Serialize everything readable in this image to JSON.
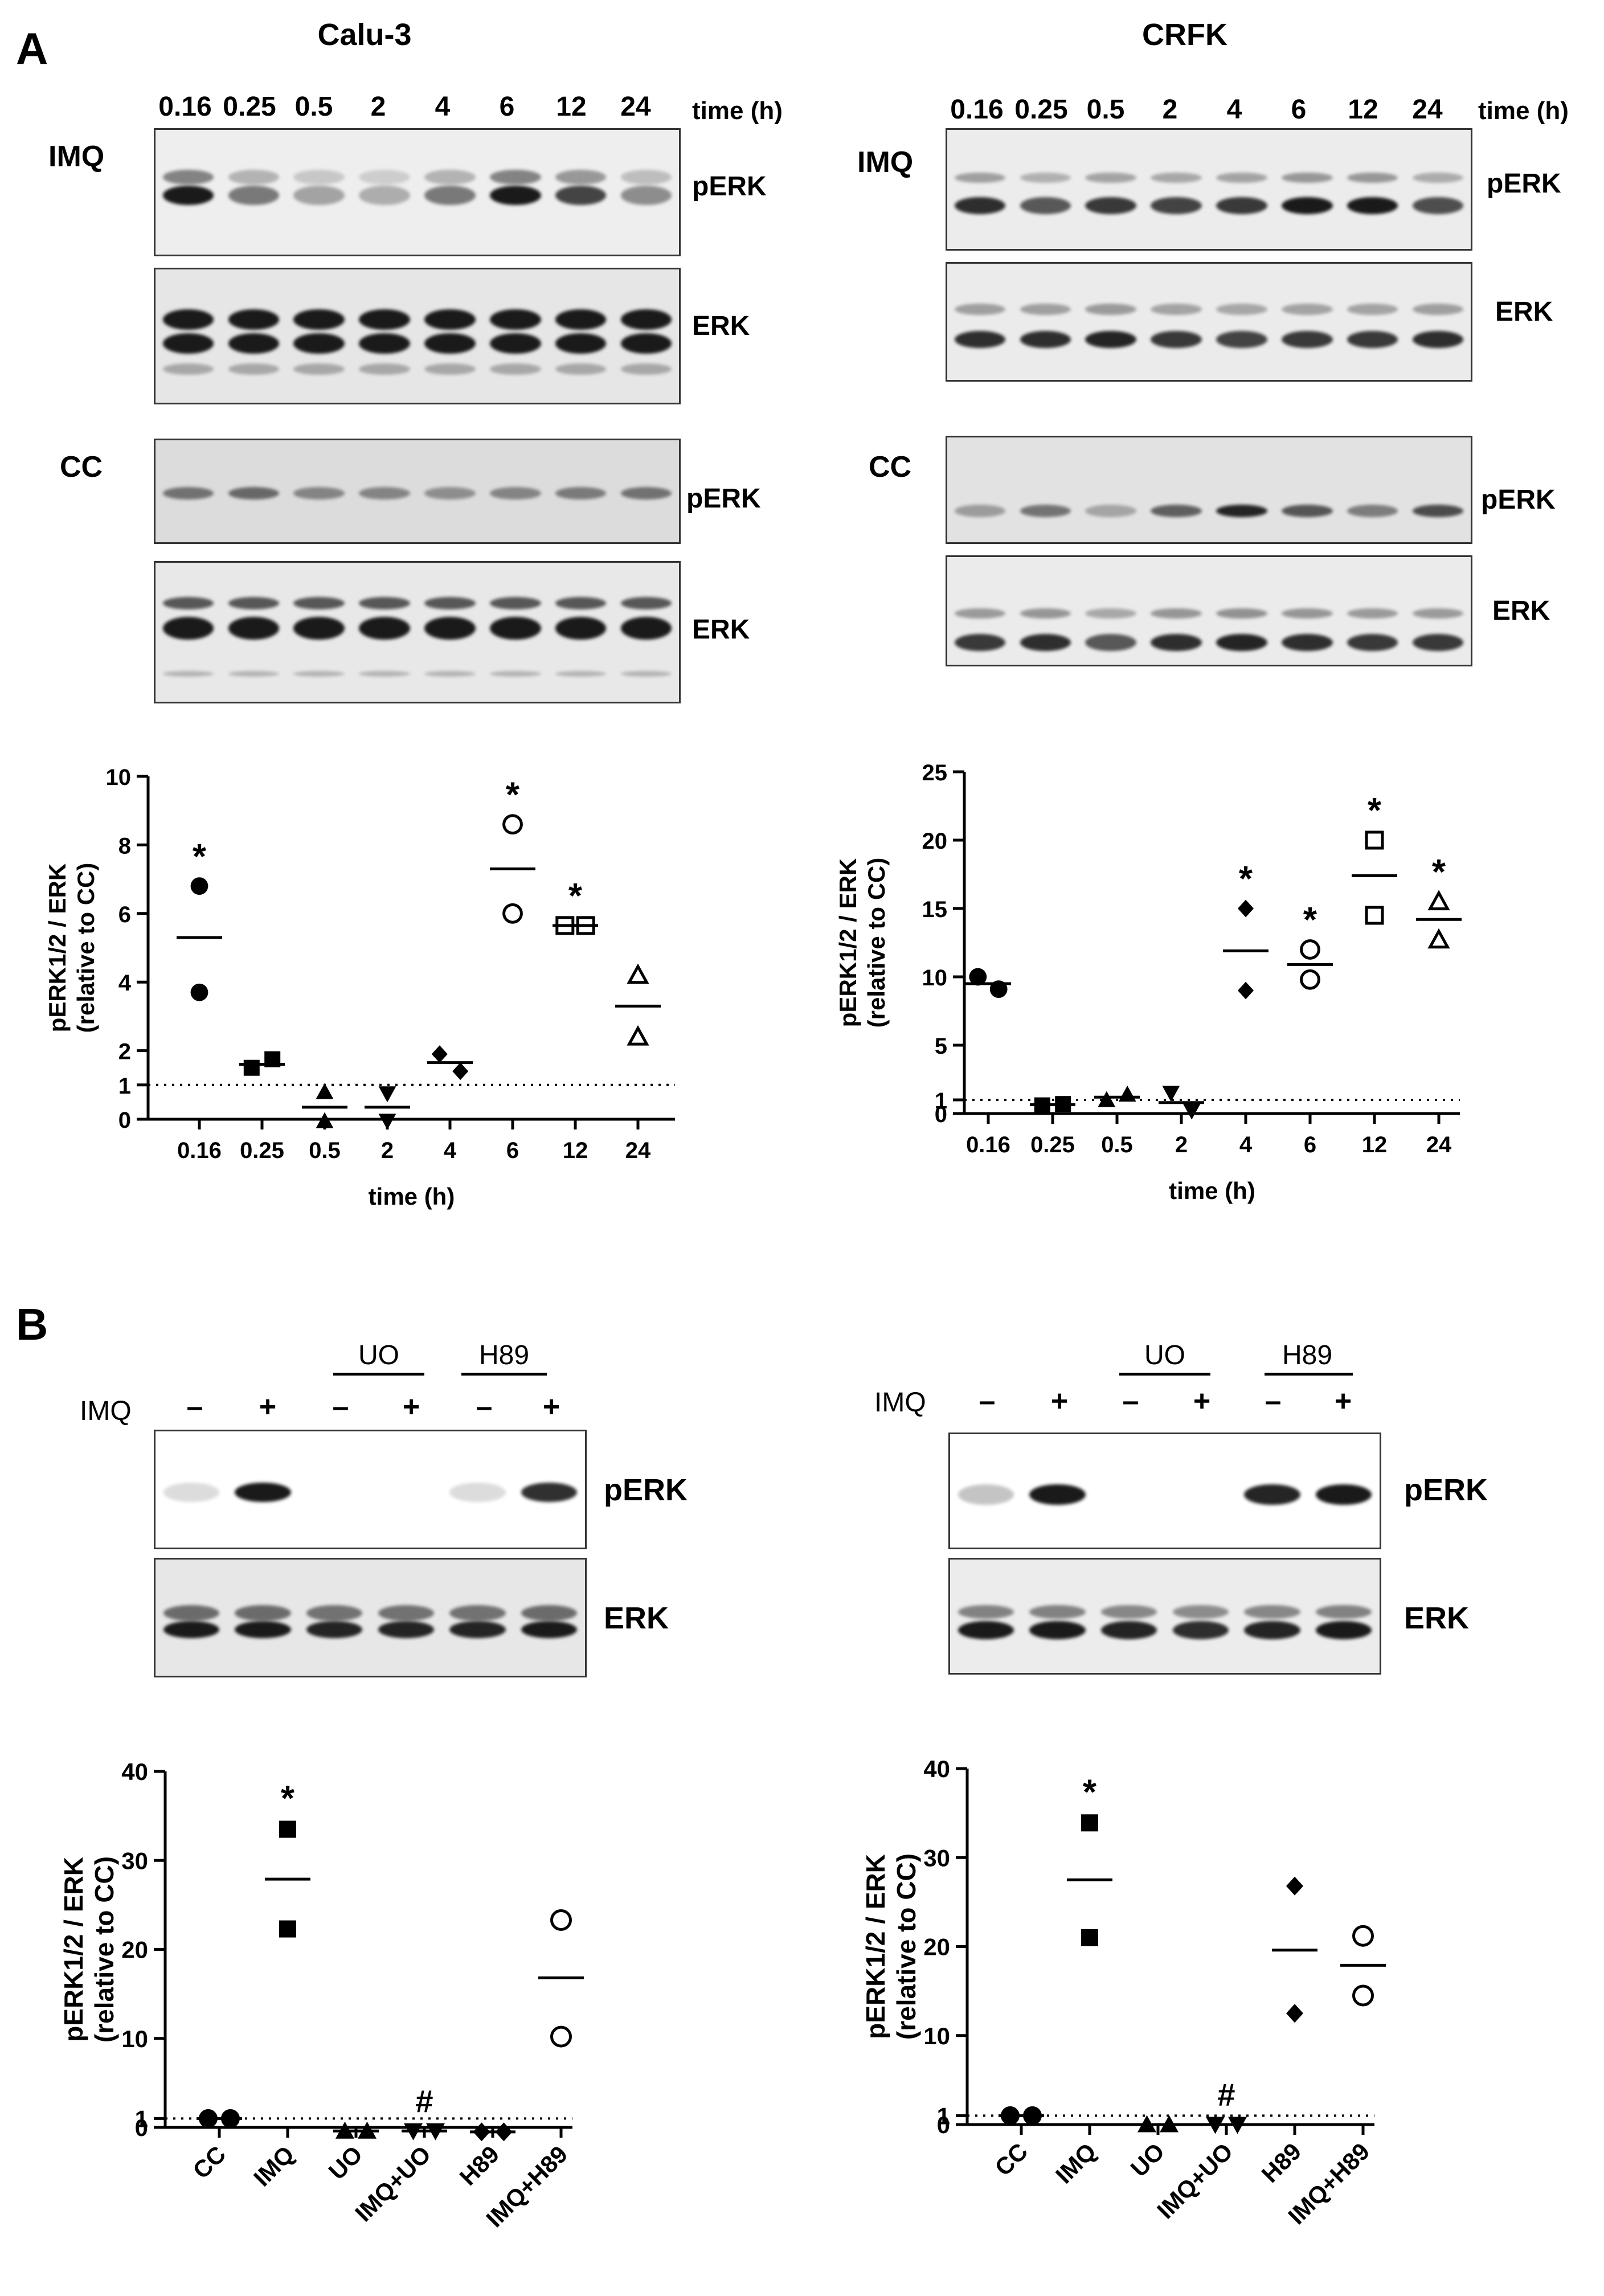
{
  "panel_a": {
    "label": "A",
    "left_title": "Calu-3",
    "right_title": "CRFK",
    "time_labels": [
      "0.16",
      "0.25",
      "0.5",
      "2",
      "4",
      "6",
      "12",
      "24"
    ],
    "time_unit": "time (h)",
    "row_imq": "IMQ",
    "row_cc": "CC",
    "band_perk": "pERK",
    "band_erk": "ERK"
  },
  "panel_b": {
    "label": "B",
    "imq_label": "IMQ",
    "uo_label": "UO",
    "h89_label": "H89",
    "signs": [
      "–",
      "+",
      "–",
      "+",
      "–",
      "+"
    ],
    "band_perk": "pERK",
    "band_erk": "ERK"
  },
  "colors": {
    "ink": "#000000",
    "blot_bg": "#e9e9e9",
    "band": "#1a1a1a"
  },
  "chart_data": [
    {
      "id": "calu3_time",
      "type": "scatter",
      "title": "",
      "xlabel": "time (h)",
      "ylabel": "pERK1/2 / ERK\n(relative to CC)",
      "categories": [
        "0.16",
        "0.25",
        "0.5",
        "2",
        "4",
        "6",
        "12",
        "24"
      ],
      "ylim": [
        0,
        10
      ],
      "yticks": [
        0,
        1,
        2,
        4,
        6,
        8,
        10
      ],
      "reference_line": 1,
      "points": [
        [
          6.8,
          3.7
        ],
        [
          1.5,
          1.75
        ],
        [
          0.8,
          -0.05
        ],
        [
          0.75,
          -0.05
        ],
        [
          1.9,
          1.4
        ],
        [
          8.6,
          6.0
        ],
        [
          5.65,
          5.65
        ],
        [
          4.2,
          2.4
        ]
      ],
      "means": [
        5.3,
        1.6,
        0.35,
        0.35,
        1.65,
        7.3,
        5.65,
        3.3
      ],
      "markers": [
        "circle",
        "square",
        "triangle-up",
        "triangle-down",
        "diamond",
        "circle-open",
        "square-open",
        "triangle-open"
      ],
      "significance": [
        "*",
        "",
        "",
        "",
        "",
        "*",
        "*",
        ""
      ]
    },
    {
      "id": "crfk_time",
      "type": "scatter",
      "title": "",
      "xlabel": "time (h)",
      "ylabel": "pERK1/2 / ERK\n(relative to CC)",
      "categories": [
        "0.16",
        "0.25",
        "0.5",
        "2",
        "4",
        "6",
        "12",
        "24"
      ],
      "ylim": [
        0,
        25
      ],
      "yticks": [
        0,
        1,
        5,
        10,
        15,
        20,
        25
      ],
      "reference_line": 1,
      "points": [
        [
          10.0,
          9.1
        ],
        [
          0.6,
          0.7
        ],
        [
          1.0,
          1.4
        ],
        [
          1.5,
          0.2
        ],
        [
          15.0,
          9.0
        ],
        [
          12.0,
          9.8
        ],
        [
          20.0,
          14.5
        ],
        [
          15.5,
          12.7
        ]
      ],
      "means": [
        9.5,
        0.65,
        1.2,
        0.8,
        11.9,
        10.9,
        17.4,
        14.2
      ],
      "markers": [
        "circle",
        "square",
        "triangle-up",
        "triangle-down",
        "diamond",
        "circle-open",
        "square-open",
        "triangle-open"
      ],
      "significance": [
        "",
        "",
        "",
        "",
        "*",
        "*",
        "*",
        "*"
      ]
    },
    {
      "id": "calu3_inhibitor",
      "type": "scatter",
      "title": "",
      "xlabel": "",
      "ylabel": "pERK1/2 / ERK\n(relative to CC)",
      "categories": [
        "CC",
        "IMQ",
        "UO",
        "IMQ+UO",
        "H89",
        "IMQ+H89"
      ],
      "ylim": [
        0,
        40
      ],
      "yticks": [
        0,
        1,
        10,
        20,
        30,
        40
      ],
      "reference_line": 1,
      "points": [
        [
          1.0,
          1.0
        ],
        [
          33.5,
          22.3
        ],
        [
          -0.4,
          -0.4
        ],
        [
          -0.4,
          -0.4
        ],
        [
          -0.5,
          -0.5
        ],
        [
          23.3,
          10.2
        ]
      ],
      "means": [
        1.0,
        27.9,
        -0.4,
        -0.4,
        -0.5,
        16.8
      ],
      "markers": [
        "circle",
        "square",
        "triangle-up",
        "triangle-down",
        "diamond",
        "circle-open"
      ],
      "significance": [
        "",
        "*",
        "",
        "#",
        "",
        ""
      ]
    },
    {
      "id": "crfk_inhibitor",
      "type": "scatter",
      "title": "",
      "xlabel": "",
      "ylabel": "pERK1/2 / ERK\n(relative to CC)",
      "categories": [
        "CC",
        "IMQ",
        "UO",
        "IMQ+UO",
        "H89",
        "IMQ+H89"
      ],
      "ylim": [
        0,
        40
      ],
      "yticks": [
        0,
        1,
        10,
        20,
        30,
        40
      ],
      "reference_line": 1,
      "points": [
        [
          1.0,
          1.0
        ],
        [
          33.9,
          21.0
        ],
        [
          0.0,
          0.0
        ],
        [
          0.0,
          0.0
        ],
        [
          26.8,
          12.5
        ],
        [
          21.2,
          14.5
        ]
      ],
      "means": [
        1.0,
        27.5,
        0.0,
        0.0,
        19.6,
        17.9
      ],
      "markers": [
        "circle",
        "square",
        "triangle-up",
        "triangle-down",
        "diamond",
        "circle-open"
      ],
      "significance": [
        "",
        "*",
        "",
        "#",
        "",
        ""
      ]
    }
  ]
}
